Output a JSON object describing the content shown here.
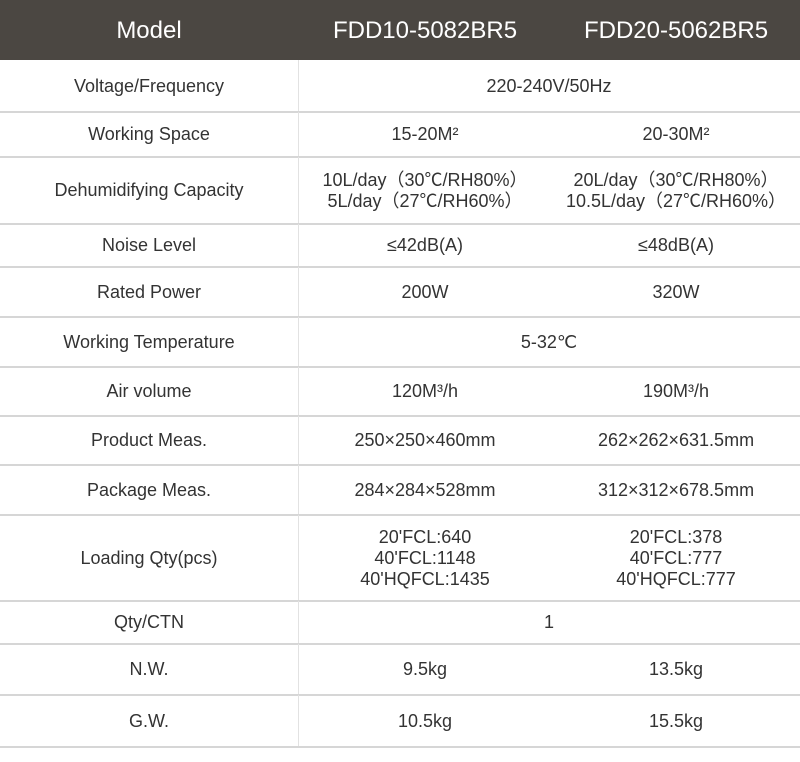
{
  "table": {
    "header": [
      "Model",
      "FDD10-5082BR5",
      "FDD20-5062BR5"
    ],
    "rows": [
      {
        "label": "Voltage/Frequency",
        "cells": [
          [
            "220-240V/50Hz"
          ]
        ]
      },
      {
        "label": "Working Space",
        "cells": [
          [
            "15-20M²"
          ],
          [
            "20-30M²"
          ]
        ]
      },
      {
        "label": "Dehumidifying Capacity",
        "cells": [
          [
            "10L/day（30℃/RH80%）",
            "5L/day（27℃/RH60%）"
          ],
          [
            "20L/day（30℃/RH80%）",
            "10.5L/day（27℃/RH60%）"
          ]
        ]
      },
      {
        "label": "Noise Level",
        "cells": [
          [
            "≤42dB(A)"
          ],
          [
            "≤48dB(A)"
          ]
        ]
      },
      {
        "label": "Rated Power",
        "cells": [
          [
            "200W"
          ],
          [
            "320W"
          ]
        ]
      },
      {
        "label": "Working Temperature",
        "cells": [
          [
            "5-32℃"
          ]
        ]
      },
      {
        "label": "Air volume",
        "cells": [
          [
            "120M³/h"
          ],
          [
            "190M³/h"
          ]
        ]
      },
      {
        "label": "Product Meas.",
        "cells": [
          [
            "250×250×460mm"
          ],
          [
            "262×262×631.5mm"
          ]
        ]
      },
      {
        "label": "Package Meas.",
        "cells": [
          [
            "284×284×528mm"
          ],
          [
            "312×312×678.5mm"
          ]
        ]
      },
      {
        "label": "Loading Qty(pcs)",
        "cells": [
          [
            "20'FCL:640",
            "40'FCL:1148",
            "40'HQFCL:1435"
          ],
          [
            "20'FCL:378",
            "40'FCL:777",
            "40'HQFCL:777"
          ]
        ]
      },
      {
        "label": "Qty/CTN",
        "cells": [
          [
            "1"
          ]
        ]
      },
      {
        "label": "N.W.",
        "cells": [
          [
            "9.5kg"
          ],
          [
            "13.5kg"
          ]
        ]
      },
      {
        "label": "G.W.",
        "cells": [
          [
            "10.5kg"
          ],
          [
            "15.5kg"
          ]
        ]
      }
    ]
  }
}
